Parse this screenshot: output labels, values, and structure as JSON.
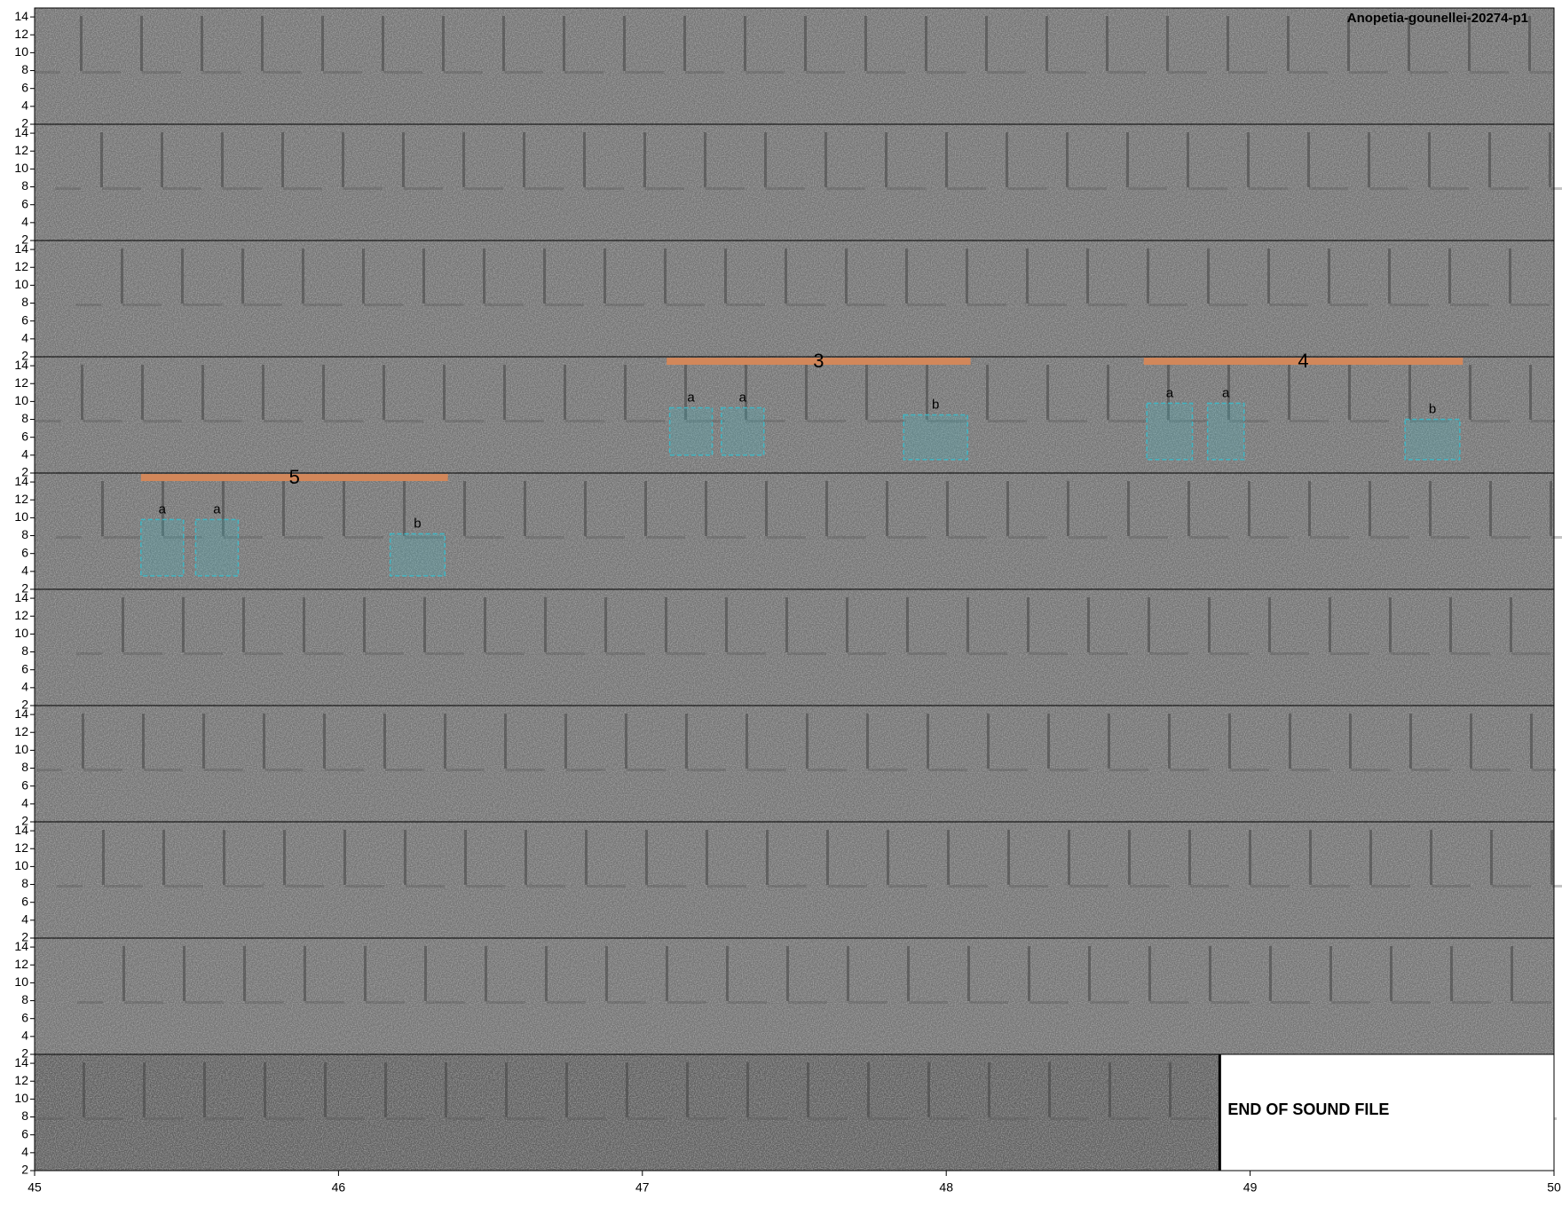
{
  "chart_data": {
    "type": "spectrogram",
    "title": "Anopetia-gounellei-20274-p1",
    "xlim": [
      45,
      50
    ],
    "xticks": [
      45,
      46,
      47,
      48,
      49,
      50
    ],
    "ylim": [
      2,
      15
    ],
    "yticks": [
      2,
      4,
      6,
      8,
      10,
      12,
      14
    ],
    "end_marker": {
      "text": "END OF SOUND FILE",
      "x": 48.9
    },
    "bar_color": "#d2875a",
    "box_color": "#3fb6c4",
    "rows": [
      {},
      {},
      {},
      {
        "annotations": [
          {
            "label": "3",
            "x": [
              47.08,
              48.08
            ],
            "y": 14.5,
            "boxes": [
              {
                "label": "a",
                "x": [
                  47.09,
                  47.23
                ],
                "y": [
                  4,
                  9.3
                ]
              },
              {
                "label": "a",
                "x": [
                  47.26,
                  47.4
                ],
                "y": [
                  4,
                  9.3
                ]
              },
              {
                "label": "b",
                "x": [
                  47.86,
                  48.07
                ],
                "y": [
                  3.5,
                  8.5
                ]
              }
            ]
          },
          {
            "label": "4",
            "x": [
              48.65,
              49.7
            ],
            "y": 14.5,
            "boxes": [
              {
                "label": "a",
                "x": [
                  48.66,
                  48.81
                ],
                "y": [
                  3.5,
                  9.8
                ]
              },
              {
                "label": "a",
                "x": [
                  48.86,
                  48.98
                ],
                "y": [
                  3.5,
                  9.8
                ]
              },
              {
                "label": "b",
                "x": [
                  49.51,
                  49.69
                ],
                "y": [
                  3.5,
                  8
                ]
              }
            ]
          }
        ]
      },
      {
        "annotations": [
          {
            "label": "5",
            "x": [
              45.35,
              46.36
            ],
            "y": 14.5,
            "boxes": [
              {
                "label": "a",
                "x": [
                  45.35,
                  45.49
                ],
                "y": [
                  3.5,
                  9.8
                ]
              },
              {
                "label": "a",
                "x": [
                  45.53,
                  45.67
                ],
                "y": [
                  3.5,
                  9.8
                ]
              },
              {
                "label": "b",
                "x": [
                  46.17,
                  46.35
                ],
                "y": [
                  3.5,
                  8.2
                ]
              }
            ]
          }
        ]
      },
      {},
      {},
      {},
      {},
      {}
    ]
  }
}
